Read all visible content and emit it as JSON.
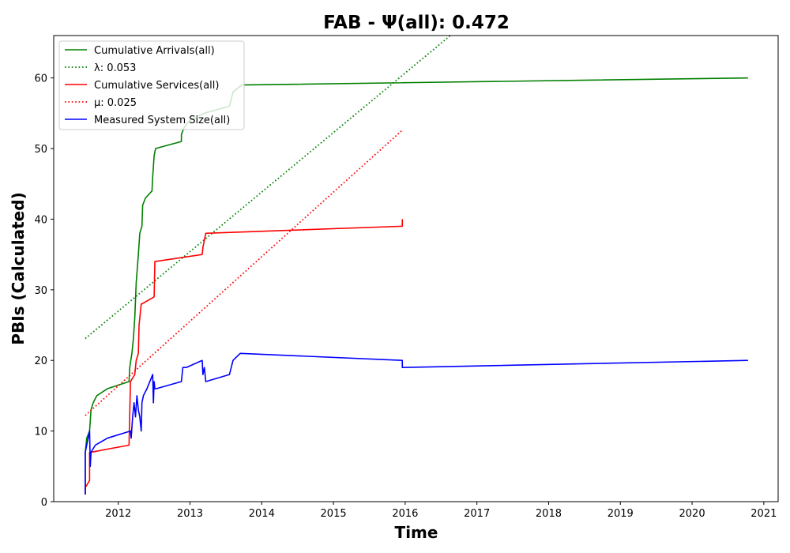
{
  "chart_data": {
    "type": "line",
    "title": "FAB -  Ψ(all): 0.472",
    "xlabel": "Time",
    "ylabel": "PBIs (Calculated)",
    "xlim": [
      2011.1,
      2021.2
    ],
    "ylim": [
      0,
      66
    ],
    "x_ticks": [
      2012,
      2013,
      2014,
      2015,
      2016,
      2017,
      2018,
      2019,
      2020,
      2021
    ],
    "y_ticks": [
      0,
      10,
      20,
      30,
      40,
      50,
      60
    ],
    "legend_position": "top-left",
    "grid": false,
    "series": [
      {
        "name": "Cumulative Arrivals(all)",
        "color": "#008000",
        "style": "solid",
        "x": [
          2011.54,
          2011.54,
          2011.56,
          2011.6,
          2011.62,
          2011.65,
          2011.7,
          2011.85,
          2012.15,
          2012.16,
          2012.19,
          2012.21,
          2012.23,
          2012.25,
          2012.28,
          2012.3,
          2012.33,
          2012.34,
          2012.38,
          2012.47,
          2012.48,
          2012.5,
          2012.52,
          2012.88,
          2012.88,
          2012.92,
          2013.0,
          2013.2,
          2013.55,
          2013.6,
          2013.72,
          2020.78
        ],
        "y": [
          1,
          7,
          9,
          10,
          13,
          14,
          15,
          16,
          17,
          19,
          21,
          23,
          26,
          31,
          35,
          38,
          39,
          42,
          43,
          44,
          46,
          49,
          50,
          51,
          52,
          53,
          54,
          55,
          56,
          58,
          59,
          60
        ]
      },
      {
        "name": "λ: 0.053",
        "color": "#008000",
        "style": "dotted",
        "x": [
          2011.54,
          2016.63
        ],
        "y": [
          23.1,
          66
        ]
      },
      {
        "name": "Cumulative Services(all)",
        "color": "#ff0000",
        "style": "solid",
        "x": [
          2011.54,
          2011.54,
          2011.6,
          2011.6,
          2011.62,
          2012.15,
          2012.17,
          2012.23,
          2012.25,
          2012.28,
          2012.29,
          2012.32,
          2012.33,
          2012.5,
          2012.51,
          2013.17,
          2013.18,
          2013.2,
          2013.22,
          2015.96,
          2015.96
        ],
        "y": [
          1,
          2,
          3,
          7,
          7,
          8,
          17,
          18,
          20,
          21,
          25,
          28,
          28,
          29,
          34,
          35,
          36,
          37,
          38,
          39,
          40
        ]
      },
      {
        "name": "μ: 0.025",
        "color": "#ff0000",
        "style": "dotted",
        "x": [
          2011.54,
          2015.96
        ],
        "y": [
          12.2,
          52.6
        ]
      },
      {
        "name": "Measured System Size(all)",
        "color": "#0000ff",
        "style": "solid",
        "x": [
          2011.54,
          2011.54,
          2011.56,
          2011.6,
          2011.61,
          2011.62,
          2011.68,
          2011.85,
          2012.17,
          2012.18,
          2012.2,
          2012.22,
          2012.24,
          2012.26,
          2012.28,
          2012.3,
          2012.32,
          2012.33,
          2012.35,
          2012.4,
          2012.48,
          2012.49,
          2012.5,
          2012.51,
          2012.53,
          2012.88,
          2012.9,
          2012.95,
          2013.17,
          2013.18,
          2013.2,
          2013.22,
          2013.55,
          2013.6,
          2013.7,
          2015.96,
          2015.96,
          2020.78
        ],
        "y": [
          1,
          7,
          8,
          10,
          5,
          7,
          8,
          9,
          10,
          9,
          12,
          14,
          12,
          15,
          13,
          12,
          10,
          14,
          15,
          16,
          18,
          14,
          17,
          16,
          16,
          17,
          19,
          19,
          20,
          18,
          19,
          17,
          18,
          20,
          21,
          20,
          19,
          20
        ]
      }
    ]
  }
}
